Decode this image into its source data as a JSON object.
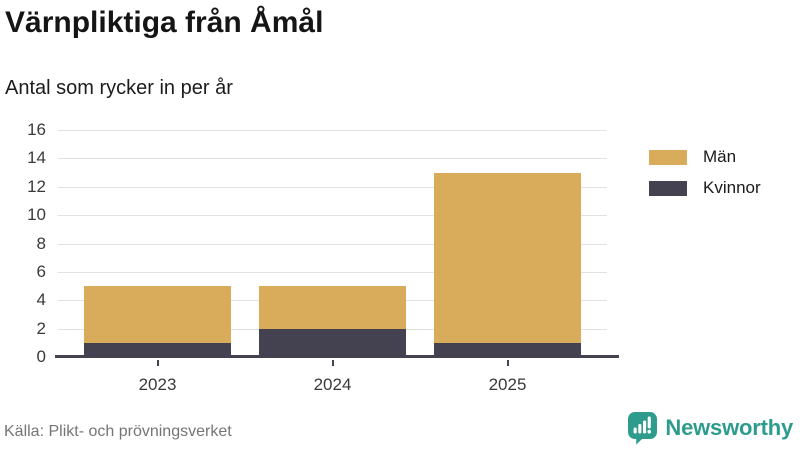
{
  "header": {
    "title": "Värnpliktiga från Åmål",
    "subtitle": "Antal som rycker in per år"
  },
  "chart_data": {
    "type": "bar",
    "stacked": true,
    "title": "Värnpliktiga från Åmål",
    "subtitle": "Antal som rycker in per år",
    "xlabel": "",
    "ylabel": "",
    "categories": [
      "2023",
      "2024",
      "2025"
    ],
    "series": [
      {
        "name": "Män",
        "color": "#D9AC5B",
        "values": [
          4,
          3,
          12
        ]
      },
      {
        "name": "Kvinnor",
        "color": "#444150",
        "values": [
          1,
          2,
          1
        ]
      }
    ],
    "totals": [
      5,
      5,
      13
    ],
    "stack_order_bottom_to_top": [
      "Kvinnor",
      "Män"
    ],
    "ylim": [
      0,
      16
    ],
    "yticks": [
      0,
      2,
      4,
      6,
      8,
      10,
      12,
      14,
      16
    ],
    "grid": true,
    "legend_position": "right"
  },
  "legend": {
    "items": [
      {
        "label": "Män",
        "color": "#D9AC5B"
      },
      {
        "label": "Kvinnor",
        "color": "#444150"
      }
    ]
  },
  "footer": {
    "source": "Källa: Plikt- och prövningsverket",
    "brand": "Newsworthy"
  },
  "colors": {
    "men": "#D9AC5B",
    "women": "#444150",
    "axis": "#444150",
    "grid": "#E2E2E2",
    "tick_text": "#3A3A3A",
    "source_text": "#757575",
    "brand_teal": "#2E9C8D",
    "background": "#FFFFFF"
  }
}
